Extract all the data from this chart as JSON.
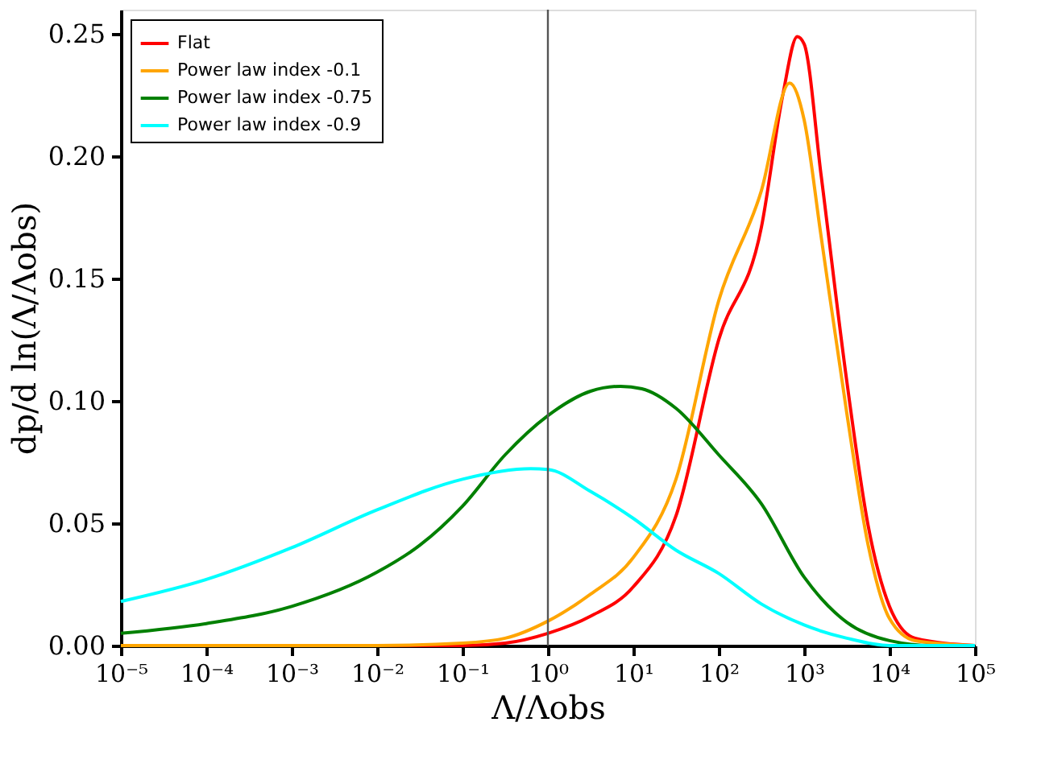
{
  "chart_data": {
    "type": "line",
    "xlabel": "Λ/Λobs",
    "ylabel": "dp/d ln(Λ/Λobs)",
    "log": "x",
    "xlim": [
      1e-05,
      100000
    ],
    "ylim": [
      0,
      0.26
    ],
    "xticks": [
      {
        "value": 1e-05,
        "label": "10⁻⁵"
      },
      {
        "value": 0.0001,
        "label": "10⁻⁴"
      },
      {
        "value": 0.001,
        "label": "10⁻³"
      },
      {
        "value": 0.01,
        "label": "10⁻²"
      },
      {
        "value": 0.1,
        "label": "10⁻¹"
      },
      {
        "value": 1,
        "label": "10⁰"
      },
      {
        "value": 10,
        "label": "10¹"
      },
      {
        "value": 100,
        "label": "10²"
      },
      {
        "value": 1000,
        "label": "10³"
      },
      {
        "value": 10000,
        "label": "10⁴"
      },
      {
        "value": 100000,
        "label": "10⁵"
      }
    ],
    "yticks": [
      {
        "value": 0,
        "label": "0.00"
      },
      {
        "value": 0.05,
        "label": "0.05"
      },
      {
        "value": 0.1,
        "label": "0.10"
      },
      {
        "value": 0.15,
        "label": "0.15"
      },
      {
        "value": 0.2,
        "label": "0.20"
      },
      {
        "value": 0.25,
        "label": "0.25"
      }
    ],
    "grid": false,
    "legend": "top left",
    "line_style": "solid",
    "marker": "none",
    "ref_lines": [
      {
        "axis": "x",
        "value": 1,
        "color": "#555555",
        "line_style": "solid"
      }
    ],
    "series": [
      {
        "name": "Flat",
        "color": "#ff0000",
        "x": [
          1e-05,
          0.01,
          0.1,
          0.316,
          1,
          3.16,
          10,
          31.6,
          100,
          316,
          562,
          832,
          1000,
          1585,
          3162,
          5623,
          10000,
          19953,
          100000
        ],
        "values": [
          0,
          0,
          0,
          0.001,
          0.005,
          0.012,
          0.024,
          0.053,
          0.125,
          0.171,
          0.225,
          0.249,
          0.246,
          0.192,
          0.108,
          0.049,
          0.016,
          0.003,
          0
        ]
      },
      {
        "name": "Power law index -0.1",
        "color": "#ffa500",
        "x": [
          1e-05,
          0.01,
          0.1,
          0.316,
          1,
          3.16,
          10,
          31.6,
          100,
          316,
          676,
          1000,
          1585,
          3162,
          5623,
          10000,
          19953,
          100000
        ],
        "values": [
          0,
          0,
          0.001,
          0.003,
          0.01,
          0.021,
          0.036,
          0.068,
          0.141,
          0.186,
          0.23,
          0.215,
          0.167,
          0.095,
          0.041,
          0.011,
          0.002,
          0
        ]
      },
      {
        "name": "Power law index -0.75",
        "color": "#008000",
        "x": [
          1e-05,
          0.0001,
          0.001,
          0.01,
          0.0316,
          0.1,
          0.316,
          1,
          3.16,
          7.08,
          12.6,
          31.6,
          100,
          316,
          1000,
          3162,
          10000,
          31623,
          100000
        ],
        "values": [
          0.005,
          0.009,
          0.016,
          0.03,
          0.041,
          0.057,
          0.078,
          0.094,
          0.104,
          0.106,
          0.105,
          0.097,
          0.078,
          0.058,
          0.028,
          0.0095,
          0.002,
          0,
          0
        ]
      },
      {
        "name": "Power law index -0.9",
        "color": "#00ffff",
        "x": [
          1e-05,
          0.0001,
          0.001,
          0.01,
          0.1,
          0.63,
          1,
          3.16,
          10,
          31.6,
          100,
          316,
          1000,
          3162,
          10000,
          100000
        ],
        "values": [
          0.018,
          0.027,
          0.04,
          0.0555,
          0.068,
          0.0723,
          0.072,
          0.063,
          0.052,
          0.039,
          0.0295,
          0.017,
          0.0084,
          0.003,
          0,
          0
        ]
      }
    ]
  }
}
